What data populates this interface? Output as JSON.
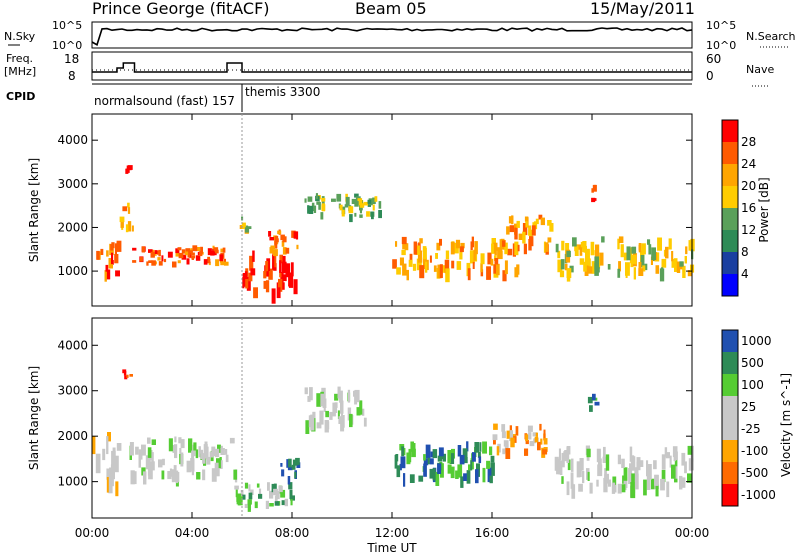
{
  "header": {
    "station": "Prince George (fitACF)",
    "beam": "Beam 05",
    "date": "15/May/2011"
  },
  "noise_panel": {
    "left_label": "N.Sky",
    "right_label": "N.Search",
    "ticks": [
      "10^5",
      "10^0"
    ]
  },
  "freq_panel": {
    "left_label_line1": "Freq.",
    "left_label_line2": "[MHz]",
    "left_ticks": [
      "18",
      "8"
    ],
    "right_label": "Nave",
    "right_ticks": [
      "60",
      "0"
    ]
  },
  "cpid_panel": {
    "label": "CPID",
    "programs": [
      "normalsound (fast) 157",
      "themis 3300"
    ]
  },
  "colors": {
    "power": [
      "#0000ff",
      "#1a3fa0",
      "#2e8b57",
      "#5aa05a",
      "#ffcc00",
      "#ffa500",
      "#ff5a00",
      "#ff0000"
    ],
    "velocity": [
      "#ff0000",
      "#ff6a00",
      "#ffa500",
      "#c8c8c8",
      "#c8c8c8",
      "#55cc33",
      "#2e8b57",
      "#2050b0"
    ],
    "ground_scatter": "#c8c8c8"
  },
  "chart_data": [
    {
      "type": "heatmap",
      "panel": "power",
      "ylabel": "Slant Range [km]",
      "yticks": [
        "1000",
        "2000",
        "3000",
        "4000"
      ],
      "ylim": [
        200,
        4600
      ],
      "xlim": [
        0,
        24
      ],
      "colorbar_label": "Power [dB]",
      "colorbar_ticks": [
        "4",
        "8",
        "12",
        "16",
        "20",
        "24",
        "28"
      ],
      "scatter_regions": [
        {
          "t0": 0.0,
          "t1": 1.0,
          "r0": 1000,
          "r1": 1700,
          "level": 6
        },
        {
          "t0": 1.1,
          "t1": 1.6,
          "r0": 2000,
          "r1": 2600,
          "level": 5
        },
        {
          "t0": 1.2,
          "t1": 1.5,
          "r0": 3200,
          "r1": 3500,
          "level": 7
        },
        {
          "t0": 1.6,
          "t1": 5.3,
          "r0": 1200,
          "r1": 1600,
          "level": 6
        },
        {
          "t0": 5.8,
          "t1": 6.2,
          "r0": 2000,
          "r1": 2400,
          "level": 4
        },
        {
          "t0": 6.0,
          "t1": 8.2,
          "r0": 600,
          "r1": 1500,
          "level": 7
        },
        {
          "t0": 7.0,
          "t1": 8.2,
          "r0": 1500,
          "r1": 2000,
          "level": 6
        },
        {
          "t0": 8.5,
          "t1": 11.5,
          "r0": 2300,
          "r1": 2800,
          "level": 3
        },
        {
          "t0": 12.0,
          "t1": 17.0,
          "r0": 1000,
          "r1": 1800,
          "level": 5
        },
        {
          "t0": 16.5,
          "t1": 18.3,
          "r0": 1600,
          "r1": 2300,
          "level": 5
        },
        {
          "t0": 18.5,
          "t1": 24.0,
          "r0": 1000,
          "r1": 1800,
          "level": 4
        },
        {
          "t0": 19.8,
          "t1": 20.1,
          "r0": 2600,
          "r1": 3000,
          "level": 6
        }
      ]
    },
    {
      "type": "heatmap",
      "panel": "velocity",
      "ylabel": "Slant Range [km]",
      "yticks": [
        "1000",
        "2000",
        "3000",
        "4000"
      ],
      "ylim": [
        200,
        4600
      ],
      "xlim": [
        0,
        24
      ],
      "colorbar_label": "Velocity [m s^-1]",
      "colorbar_ticks": [
        "1000",
        "500",
        "100",
        "25",
        "-25",
        "-100",
        "-500",
        "-1000"
      ],
      "xticks": [
        "00:00",
        "04:00",
        "08:00",
        "12:00",
        "16:00",
        "20:00",
        "00:00"
      ],
      "xlabel": "Time UT",
      "scatter_regions": [
        {
          "t0": 0.0,
          "t1": 1.0,
          "r0": 1000,
          "r1": 2100,
          "level": 3
        },
        {
          "t0": 1.2,
          "t1": 1.5,
          "r0": 3200,
          "r1": 3500,
          "level": 1
        },
        {
          "t0": 1.5,
          "t1": 5.8,
          "r0": 1200,
          "r1": 2000,
          "level": 4
        },
        {
          "t0": 5.6,
          "t1": 8.0,
          "r0": 500,
          "r1": 1000,
          "level": 5
        },
        {
          "t0": 7.5,
          "t1": 8.2,
          "r0": 1100,
          "r1": 1600,
          "level": 7
        },
        {
          "t0": 8.5,
          "t1": 11.0,
          "r0": 2300,
          "r1": 3100,
          "level": 4
        },
        {
          "t0": 12.0,
          "t1": 16.0,
          "r0": 1100,
          "r1": 1900,
          "level": 6
        },
        {
          "t0": 16.0,
          "t1": 18.2,
          "r0": 1700,
          "r1": 2300,
          "level": 2
        },
        {
          "t0": 18.5,
          "t1": 24.0,
          "r0": 900,
          "r1": 1800,
          "level": 4
        },
        {
          "t0": 19.8,
          "t1": 20.1,
          "r0": 2600,
          "r1": 3000,
          "level": 6
        }
      ]
    }
  ]
}
